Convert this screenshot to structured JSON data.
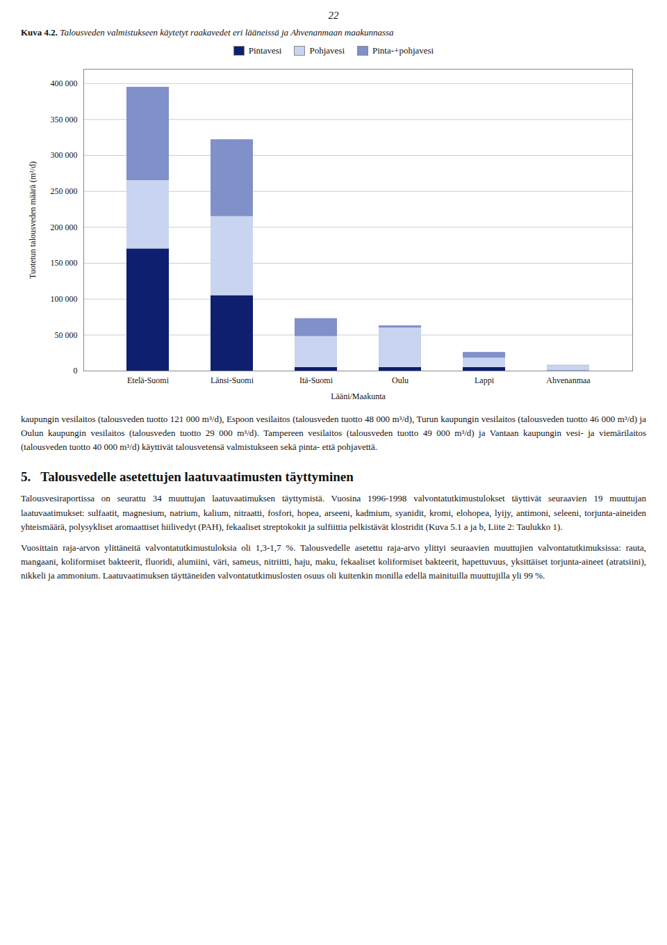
{
  "page_number": "22",
  "caption_label": "Kuva 4.2.",
  "chart_data": {
    "type": "bar",
    "stacked": true,
    "title": "Talousveden valmistukseen käytetyt raakavedet eri lääneissä ja Ahvenanmaan maakunnassa",
    "categories": [
      "Etelä-Suomi",
      "Länsi-Suomi",
      "Itä-Suomi",
      "Oulu",
      "Lappi",
      "Ahvenanmaa"
    ],
    "series": [
      {
        "name": "Pintavesi",
        "color": "#0d1f6e",
        "values": [
          170000,
          105000,
          5000,
          5000,
          5000,
          500
        ]
      },
      {
        "name": "Pohjavesi",
        "color": "#c8d4f0",
        "values": [
          95000,
          110000,
          43000,
          55000,
          13000,
          7000
        ]
      },
      {
        "name": "Pinta-+pohjavesi",
        "color": "#8090c8",
        "values": [
          130000,
          107000,
          25000,
          3000,
          8000,
          500
        ]
      }
    ],
    "xlabel": "Lääni/Maakunta",
    "ylabel": "Tuotetun talousveden määrä (m³/d)",
    "ylim": [
      0,
      420000
    ],
    "yticks": [
      0,
      {
        "value": 50000,
        "label": "50 000"
      },
      {
        "value": 100000,
        "label": "100 000"
      },
      {
        "value": 150000,
        "label": "150 000"
      },
      {
        "value": 200000,
        "label": "200 000"
      },
      {
        "value": 250000,
        "label": "250 000"
      },
      {
        "value": 300000,
        "label": "300 000"
      },
      {
        "value": 350000,
        "label": "350 000"
      },
      {
        "value": 400000,
        "label": "400 000"
      }
    ],
    "grid": true,
    "legend": "top"
  },
  "body_text_1": "kaupungin vesilaitos (talousveden tuotto 121 000 m³/d), Espoon vesilaitos (talousveden tuotto  48 000 m³/d), Turun kaupungin vesilaitos  (talousveden tuotto 46 000 m³/d) ja Oulun kaupungin vesilaitos (talousveden tuotto 29 000 m³/d). Tampereen vesilaitos (talousveden tuotto 49 000 m³/d) ja Vantaan kaupungin vesi- ja viemärilaitos (talousveden tuotto 40 000 m³/d) käyttivät talousvetensä valmistukseen sekä pinta- että pohjavettä.",
  "section_number": "5.",
  "section_heading": "Talousvedelle asetettujen laatuvaatimusten täyttyminen",
  "body_text_2": "Talousvesiraportissa on seurattu 34 muuttujan laatuvaatimuksen täyttymistä. Vuosina 1996-1998 valvontatutkimustulokset täyttivät seuraavien 19 muuttujan laatuvaatimukset: sulfaatit, magnesium, natrium, kalium, nitraatti, fosfori, hopea, arseeni, kadmium, syanidit, kromi, elohopea, lyijy, antimoni, seleeni, torjunta-aineiden yhteismäärä, polysykliset aromaattiset hiilivedyt (PAH), fekaaliset streptokokit ja sulfiittia pelkistävät klostridit (Kuva 5.1 a ja b, Liite 2: Taulukko 1).",
  "body_text_3": "Vuosittain raja-arvon ylittäneitä valvontatutkimustuloksia oli 1,3-1,7 %. Talousvedelle asetettu raja-arvo ylittyi seuraavien muuttujien valvontatutkimuksissa: rauta, mangaani, koliformiset bakteerit, fluoridi, alumiini, väri, sameus, nitriitti, haju, maku, fekaaliset koliformiset bakteerit, hapettuvuus, yksittäiset torjunta-aineet (atratsiini), nikkeli ja ammonium. Laatuvaatimuksen täyttäneiden valvontatutkimuslosten osuus oli kuitenkin monilla edellä mainituilla muuttujilla yli 99 %."
}
